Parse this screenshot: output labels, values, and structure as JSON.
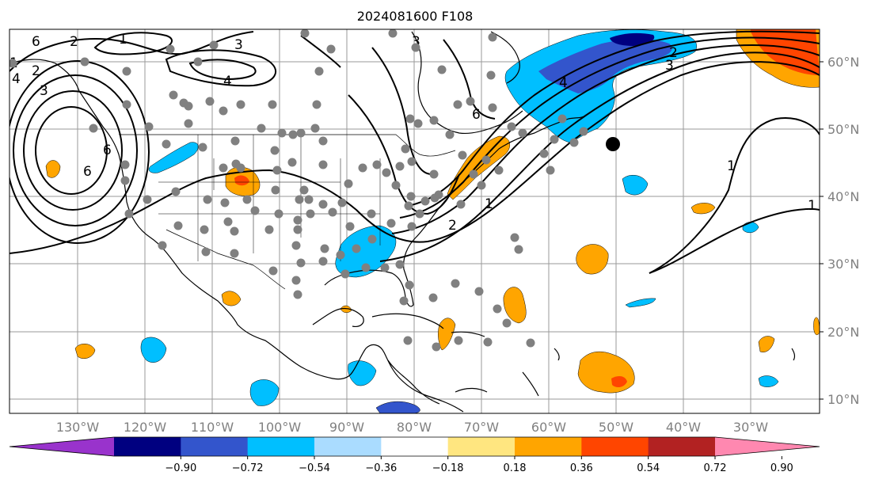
{
  "title": "2024081600 F108",
  "lat_labels": [
    "60°N",
    "50°N",
    "40°N",
    "30°N",
    "20°N",
    "10°N"
  ],
  "lon_labels": [
    "130°W",
    "120°W",
    "110°W",
    "100°W",
    "90°W",
    "80°W",
    "70°W",
    "60°W",
    "50°W",
    "40°W",
    "30°W"
  ],
  "colorbar": {
    "ticks": [
      "−0.90",
      "−0.72",
      "−0.54",
      "−0.36",
      "−0.18",
      "0.18",
      "0.36",
      "0.54",
      "0.72",
      "0.90"
    ],
    "colors": [
      "#9933cc",
      "#000080",
      "#3355cc",
      "#00bfff",
      "#aadcff",
      "#ffffff",
      "#ffe680",
      "#ffa500",
      "#ff4500",
      "#b22222",
      "#ff88b0"
    ]
  },
  "contour_labels": [
    "6",
    "2",
    "1",
    "3",
    "4",
    "6",
    "1",
    "2",
    "3",
    "4",
    "6",
    "1",
    "2",
    "6",
    "3",
    "1",
    "1",
    "4",
    "3",
    "2"
  ],
  "shading_colors": {
    "neg_light": "#00bfff",
    "neg_mid": "#3355cc",
    "neg_dark": "#000080",
    "pos_light": "#ffa500",
    "pos_mid": "#ff4500"
  },
  "station_color": "#808080",
  "marker_color": "#000000"
}
